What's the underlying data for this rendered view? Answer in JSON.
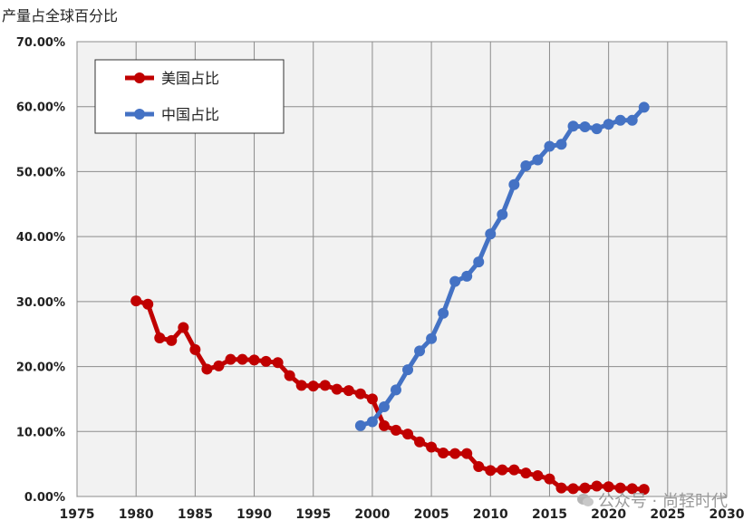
{
  "chart_data": {
    "type": "line",
    "ylabel": "产量占全球百分比",
    "xlim": [
      1975,
      2030
    ],
    "ylim": [
      0,
      70
    ],
    "x_ticks": [
      1975,
      1980,
      1985,
      1990,
      1995,
      2000,
      2005,
      2010,
      2015,
      2020,
      2025,
      2030
    ],
    "y_ticks": [
      "0.00%",
      "10.00%",
      "20.00%",
      "30.00%",
      "40.00%",
      "50.00%",
      "60.00%",
      "70.00%"
    ],
    "grid": true,
    "legend_position": "top-left",
    "series": [
      {
        "name": "美国占比",
        "color": "#c00000",
        "x": [
          1980,
          1981,
          1982,
          1983,
          1984,
          1985,
          1986,
          1987,
          1988,
          1989,
          1990,
          1991,
          1992,
          1993,
          1994,
          1995,
          1996,
          1997,
          1998,
          1999,
          2000,
          2001,
          2002,
          2003,
          2004,
          2005,
          2006,
          2007,
          2008,
          2009,
          2010,
          2011,
          2012,
          2013,
          2014,
          2015,
          2016,
          2017,
          2018,
          2019,
          2020,
          2021,
          2022,
          2023
        ],
        "values": [
          30.1,
          29.6,
          24.4,
          24.0,
          26.0,
          22.6,
          19.6,
          20.1,
          21.1,
          21.1,
          21.0,
          20.8,
          20.6,
          18.6,
          17.1,
          17.0,
          17.1,
          16.5,
          16.3,
          15.8,
          15.0,
          10.9,
          10.2,
          9.6,
          8.4,
          7.6,
          6.7,
          6.6,
          6.6,
          4.6,
          4.0,
          4.1,
          4.1,
          3.6,
          3.2,
          2.7,
          1.3,
          1.2,
          1.3,
          1.6,
          1.5,
          1.3,
          1.2,
          1.1
        ]
      },
      {
        "name": "中国占比",
        "color": "#4472c4",
        "x": [
          1999,
          2000,
          2001,
          2002,
          2003,
          2004,
          2005,
          2006,
          2007,
          2008,
          2009,
          2010,
          2011,
          2012,
          2013,
          2014,
          2015,
          2016,
          2017,
          2018,
          2019,
          2020,
          2021,
          2022,
          2023
        ],
        "values": [
          10.9,
          11.5,
          13.8,
          16.4,
          19.5,
          22.4,
          24.3,
          28.2,
          33.1,
          33.9,
          36.1,
          40.4,
          43.4,
          48.0,
          50.9,
          51.8,
          53.9,
          54.2,
          57.0,
          56.9,
          56.6,
          57.3,
          57.9,
          57.9,
          59.9
        ]
      }
    ]
  },
  "watermark": {
    "text": "公众号 · 尚轻时代",
    "icon": "wechat-icon"
  }
}
